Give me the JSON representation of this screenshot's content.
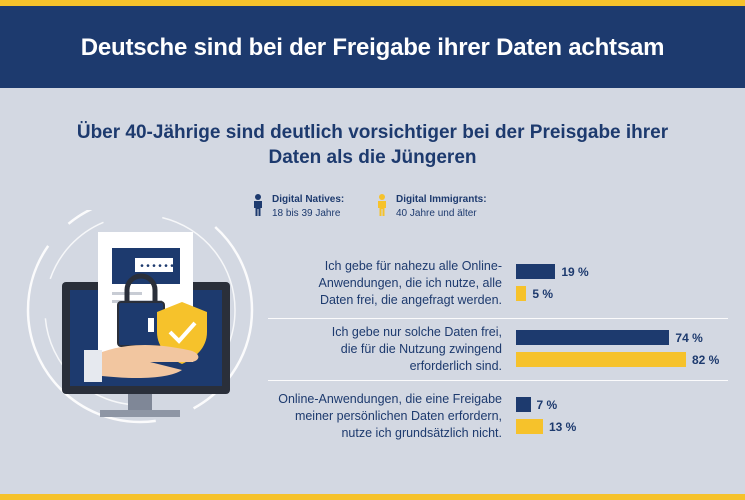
{
  "header": {
    "title": "Deutsche sind bei der Freigabe ihrer Daten achtsam"
  },
  "subtitle": "Über 40-Jährige sind deutlich vorsichtiger bei der Preisgabe ihrer Daten als die Jüngeren",
  "colors": {
    "navy": "#1d3a6e",
    "yellow": "#f6c22b",
    "background": "#d3d8e2"
  },
  "legend": [
    {
      "name": "Digital Natives:",
      "sub": "18 bis 39 Jahre",
      "icon": "person-icon-navy"
    },
    {
      "name": "Digital Immigrants:",
      "sub": "40 Jahre und älter",
      "icon": "person-icon-yellow"
    }
  ],
  "chart_data": {
    "type": "bar",
    "orientation": "horizontal",
    "categories": [
      "Ich gebe für nahezu alle Online-Anwendungen, die ich nutze, alle Daten frei, die angefragt werden.",
      "Ich gebe nur solche Daten frei, die für die Nutzung zwingend erforderlich sind.",
      "Online-Anwendungen, die eine Freigabe meiner persönlichen Daten erfordern, nutze ich grundsätzlich nicht."
    ],
    "category_lines": [
      [
        "Ich gebe für nahezu alle Online-",
        "Anwendungen, die ich nutze, alle",
        "Daten frei, die angefragt werden."
      ],
      [
        "Ich gebe nur solche Daten frei,",
        "die für die Nutzung zwingend",
        "erforderlich sind."
      ],
      [
        "Online-Anwendungen, die eine Freigabe",
        "meiner persönlichen Daten erfordern,",
        "nutze ich grundsätzlich nicht."
      ]
    ],
    "series": [
      {
        "name": "Digital Natives",
        "values": [
          19,
          74,
          7
        ],
        "labels": [
          "19 %",
          "74 %",
          "7 %"
        ],
        "color": "#1d3a6e"
      },
      {
        "name": "Digital Immigrants",
        "values": [
          5,
          82,
          13
        ],
        "labels": [
          "5 %",
          "82 %",
          "13 %"
        ],
        "color": "#f6c22b"
      }
    ],
    "unit": "%",
    "xlim": [
      0,
      100
    ]
  }
}
